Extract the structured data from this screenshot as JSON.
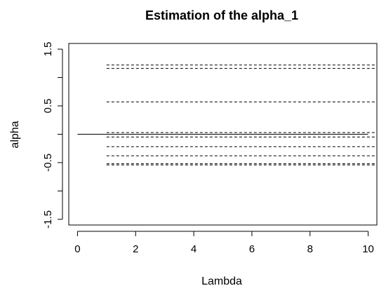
{
  "chart_data": {
    "type": "line",
    "title": "Estimation of the alpha_1",
    "xlabel": "Lambda",
    "ylabel": "alpha",
    "xlim": [
      -0.3,
      10.3
    ],
    "ylim": [
      -1.6,
      1.6
    ],
    "x_ticks": [
      0,
      2,
      4,
      6,
      8,
      10
    ],
    "y_ticks": [
      -1.5,
      -1.0,
      -0.5,
      0.0,
      0.5,
      1.0,
      1.5
    ],
    "y_tick_labels": [
      "-1.5",
      "",
      "-0.5",
      "",
      "0.5",
      "",
      "1.5"
    ],
    "grid": false,
    "legend": "none",
    "series": [
      {
        "style": "solid",
        "x": [
          0,
          10
        ],
        "values": [
          0.0,
          0.0
        ]
      },
      {
        "style": "dashed",
        "x": [
          1,
          10.3
        ],
        "values": [
          1.22,
          1.22
        ]
      },
      {
        "style": "dashed",
        "x": [
          1,
          10.3
        ],
        "values": [
          1.16,
          1.16
        ]
      },
      {
        "style": "dashed",
        "x": [
          1,
          10.3
        ],
        "values": [
          0.57,
          0.57
        ]
      },
      {
        "style": "dashed",
        "x": [
          1,
          10.3
        ],
        "values": [
          0.03,
          0.03
        ]
      },
      {
        "style": "dashed",
        "x": [
          1,
          10.3
        ],
        "values": [
          -0.05,
          -0.05
        ]
      },
      {
        "style": "dashed",
        "x": [
          1,
          10.3
        ],
        "values": [
          -0.22,
          -0.22
        ]
      },
      {
        "style": "dashed",
        "x": [
          1,
          10.3
        ],
        "values": [
          -0.38,
          -0.38
        ]
      },
      {
        "style": "dashed",
        "x": [
          1,
          10.3
        ],
        "values": [
          -0.52,
          -0.52
        ]
      },
      {
        "style": "dashed",
        "x": [
          1,
          10.3
        ],
        "values": [
          -0.54,
          -0.54
        ]
      }
    ]
  }
}
